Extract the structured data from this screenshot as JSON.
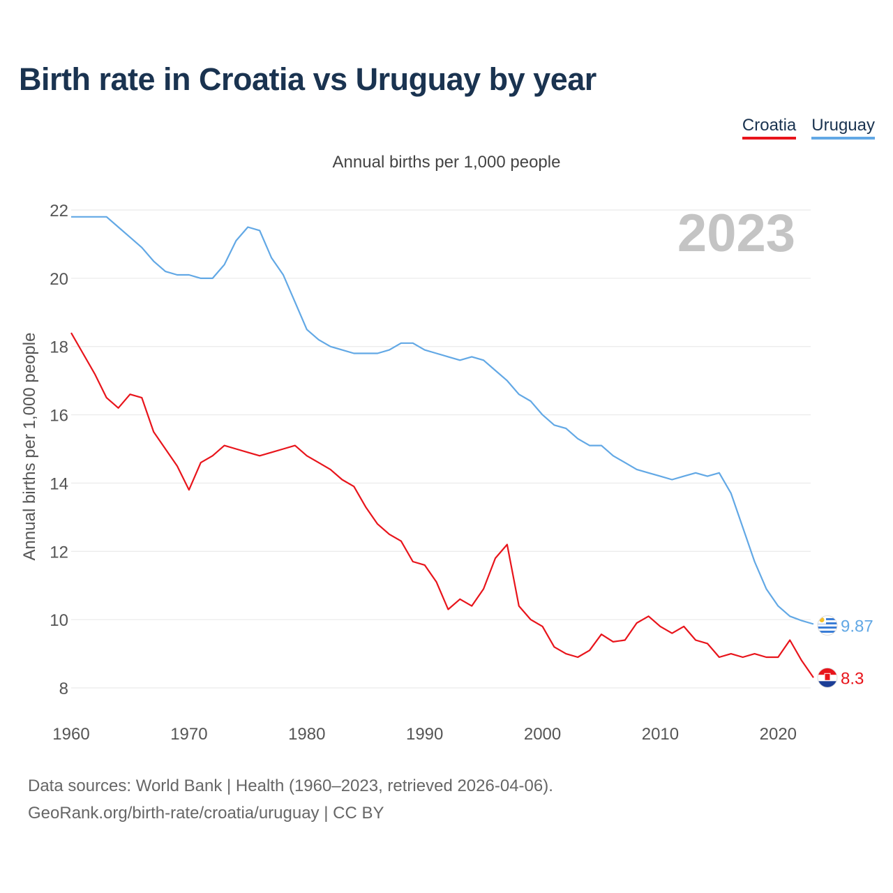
{
  "title": "Birth rate in Croatia vs Uruguay by year",
  "colors": {
    "croatia": "#e8141b",
    "uruguay": "#62a8e5",
    "title": "#1a3350"
  },
  "chart_data": {
    "type": "line",
    "title": "Birth rate in Croatia vs Uruguay by year",
    "subtitle": "Annual births per 1,000 people",
    "ylabel": "Annual births per 1,000 people",
    "xlabel": "",
    "ylim": [
      7.5,
      22.2
    ],
    "xlim": [
      1960,
      2023
    ],
    "yticks": [
      8,
      10,
      12,
      14,
      16,
      18,
      20,
      22
    ],
    "xticks": [
      1960,
      1970,
      1980,
      1990,
      2000,
      2010,
      2020
    ],
    "grid": true,
    "legend_position": "top-right",
    "year_label": "2023",
    "x": [
      1960,
      1961,
      1962,
      1963,
      1964,
      1965,
      1966,
      1967,
      1968,
      1969,
      1970,
      1971,
      1972,
      1973,
      1974,
      1975,
      1976,
      1977,
      1978,
      1979,
      1980,
      1981,
      1982,
      1983,
      1984,
      1985,
      1986,
      1987,
      1988,
      1989,
      1990,
      1991,
      1992,
      1993,
      1994,
      1995,
      1996,
      1997,
      1998,
      1999,
      2000,
      2001,
      2002,
      2003,
      2004,
      2005,
      2006,
      2007,
      2008,
      2009,
      2010,
      2011,
      2012,
      2013,
      2014,
      2015,
      2016,
      2017,
      2018,
      2019,
      2020,
      2021,
      2022,
      2023
    ],
    "series": [
      {
        "name": "Croatia",
        "color": "#e8141b",
        "end_label": "8.3",
        "values": [
          18.4,
          17.8,
          17.2,
          16.5,
          16.2,
          16.6,
          16.5,
          15.5,
          15.0,
          14.5,
          13.8,
          14.6,
          14.8,
          15.1,
          15.0,
          14.9,
          14.8,
          14.9,
          15.0,
          15.1,
          14.8,
          14.6,
          14.4,
          14.1,
          13.9,
          13.3,
          12.8,
          12.5,
          12.3,
          11.7,
          11.6,
          11.1,
          10.3,
          10.6,
          10.4,
          10.9,
          11.8,
          12.2,
          10.4,
          10.0,
          9.8,
          9.2,
          9.0,
          8.9,
          9.1,
          9.57,
          9.35,
          9.4,
          9.9,
          10.1,
          9.8,
          9.6,
          9.8,
          9.4,
          9.3,
          8.9,
          9.0,
          8.9,
          9.0,
          8.9,
          8.9,
          9.4,
          8.8,
          8.3
        ]
      },
      {
        "name": "Uruguay",
        "color": "#62a8e5",
        "end_label": "9.87",
        "values": [
          21.8,
          21.8,
          21.8,
          21.8,
          21.5,
          21.2,
          20.9,
          20.5,
          20.2,
          20.1,
          20.1,
          20.0,
          20.0,
          20.4,
          21.1,
          21.5,
          21.4,
          20.6,
          20.1,
          19.3,
          18.5,
          18.2,
          18.0,
          17.9,
          17.8,
          17.8,
          17.8,
          17.9,
          18.1,
          18.1,
          17.9,
          17.8,
          17.7,
          17.6,
          17.7,
          17.6,
          17.3,
          17.0,
          16.6,
          16.4,
          16.0,
          15.7,
          15.6,
          15.3,
          15.1,
          15.1,
          14.8,
          14.6,
          14.4,
          14.3,
          14.2,
          14.1,
          14.2,
          14.3,
          14.2,
          14.3,
          13.7,
          12.7,
          11.7,
          10.9,
          10.4,
          10.1,
          9.97,
          9.87
        ]
      }
    ]
  },
  "source": {
    "line1": "Data sources: World Bank | Health (1960–2023, retrieved 2026-04-06).",
    "line2": "GeoRank.org/birth-rate/croatia/uruguay | CC BY"
  }
}
